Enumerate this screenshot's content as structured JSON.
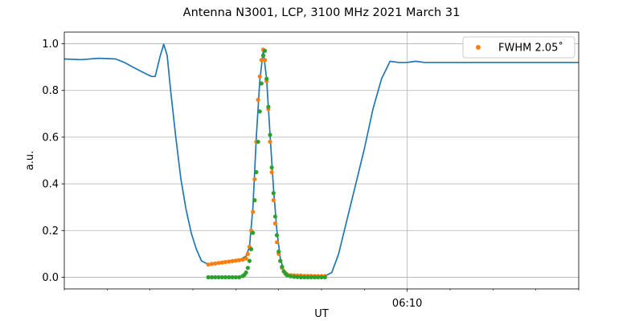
{
  "chart_data": {
    "type": "line",
    "title": "Antenna N3001, LCP, 3100 MHz 2021 March 31",
    "xlabel": "UT",
    "ylabel": "a.u.",
    "x_unit": "minutes",
    "xlim": [
      -20,
      10
    ],
    "ylim": [
      -0.05,
      1.05
    ],
    "y_ticks": [
      0.0,
      0.2,
      0.4,
      0.6,
      0.8,
      1.0
    ],
    "y_tick_labels": [
      "0.0",
      "0.2",
      "0.4",
      "0.6",
      "0.8",
      "1.0"
    ],
    "x_major_ticks": [
      {
        "value": 0,
        "label": "06:10"
      }
    ],
    "x_minor_ticks": [
      -20,
      -17.5,
      -15,
      -12.5,
      -10,
      -7.5,
      -5,
      -2.5,
      2.5,
      5,
      7.5,
      10
    ],
    "grid": true,
    "legend": {
      "placement": "top-right",
      "entries": [
        "FWHM 2.05$^\\circ$"
      ]
    },
    "legend_display": "FWHM 2.05˚",
    "colors": {
      "line": "#1f77b4",
      "fit": "#ff7f0e",
      "model": "#2ca02c"
    },
    "series": [
      {
        "style": "line",
        "color": "#1f77b4",
        "x": [
          -20,
          -19,
          -18,
          -17,
          -16.5,
          -16,
          -15.6,
          -15.2,
          -14.9,
          -14.7,
          -14.4,
          -14.2,
          -14,
          -13.8,
          -13.5,
          -13.2,
          -12.9,
          -12.6,
          -12.3,
          -12,
          -11.6,
          -11.2,
          -10.8,
          -10.4,
          -10,
          -9.7,
          -9.4,
          -9.2,
          -9,
          -8.8,
          -8.6,
          -8.4,
          -8.2,
          -8,
          -7.8,
          -7.6,
          -7.4,
          -7.2,
          -7,
          -6.8,
          -6.6,
          -6.4,
          -6.2,
          -6,
          -5.6,
          -5.2,
          -4.8,
          -4.4,
          -4,
          -3.5,
          -3,
          -2.5,
          -2,
          -1.5,
          -1,
          -0.5,
          0,
          0.5,
          1,
          2,
          3,
          4,
          5,
          6,
          7,
          8,
          9,
          10
        ],
        "y": [
          0.935,
          0.932,
          0.938,
          0.935,
          0.92,
          0.9,
          0.885,
          0.87,
          0.86,
          0.86,
          0.95,
          0.998,
          0.95,
          0.8,
          0.6,
          0.42,
          0.29,
          0.19,
          0.12,
          0.07,
          0.055,
          0.06,
          0.065,
          0.07,
          0.075,
          0.078,
          0.09,
          0.13,
          0.3,
          0.6,
          0.84,
          0.97,
          0.85,
          0.61,
          0.38,
          0.2,
          0.08,
          0.03,
          0.01,
          0.005,
          0.005,
          0.005,
          0.005,
          0.005,
          0.005,
          0.003,
          0.005,
          0.02,
          0.1,
          0.25,
          0.4,
          0.55,
          0.72,
          0.85,
          0.925,
          0.92,
          0.92,
          0.925,
          0.92,
          0.92,
          0.92,
          0.92,
          0.92,
          0.92,
          0.92,
          0.92,
          0.92,
          0.92
        ]
      },
      {
        "name": "FWHM 2.05˚",
        "style": "scatter",
        "color": "#ff7f0e",
        "x": [
          -11.6,
          -11.4,
          -11.2,
          -11,
          -10.8,
          -10.6,
          -10.4,
          -10.2,
          -10,
          -9.8,
          -9.6,
          -9.4,
          -9.3,
          -9.2,
          -9.1,
          -9,
          -8.9,
          -8.8,
          -8.7,
          -8.6,
          -8.5,
          -8.4,
          -8.3,
          -8.2,
          -8.1,
          -8,
          -7.9,
          -7.8,
          -7.7,
          -7.6,
          -7.5,
          -7.4,
          -7.3,
          -7.2,
          -7.1,
          -7,
          -6.8,
          -6.6,
          -6.4,
          -6.2,
          -6,
          -5.8,
          -5.6,
          -5.4,
          -5.2,
          -5,
          -4.8
        ],
        "y": [
          0.054,
          0.057,
          0.059,
          0.061,
          0.063,
          0.065,
          0.067,
          0.069,
          0.071,
          0.073,
          0.075,
          0.08,
          0.1,
          0.13,
          0.2,
          0.28,
          0.42,
          0.58,
          0.76,
          0.86,
          0.93,
          0.975,
          0.93,
          0.84,
          0.72,
          0.58,
          0.45,
          0.33,
          0.23,
          0.15,
          0.1,
          0.07,
          0.04,
          0.025,
          0.017,
          0.012,
          0.009,
          0.008,
          0.007,
          0.007,
          0.006,
          0.006,
          0.006,
          0.005,
          0.005,
          0.005,
          0.005
        ]
      },
      {
        "style": "scatter",
        "color": "#2ca02c",
        "x": [
          -11.6,
          -11.4,
          -11.2,
          -11,
          -10.8,
          -10.6,
          -10.4,
          -10.2,
          -10,
          -9.8,
          -9.6,
          -9.5,
          -9.4,
          -9.3,
          -9.2,
          -9.1,
          -9,
          -8.9,
          -8.8,
          -8.7,
          -8.6,
          -8.5,
          -8.4,
          -8.3,
          -8.2,
          -8.1,
          -8,
          -7.9,
          -7.8,
          -7.7,
          -7.6,
          -7.5,
          -7.4,
          -7.3,
          -7.2,
          -7.1,
          -7,
          -6.8,
          -6.6,
          -6.4,
          -6.2,
          -6,
          -5.8,
          -5.6,
          -5.4,
          -5.2,
          -5,
          -4.8
        ],
        "y": [
          0.0,
          0.0,
          0.0,
          0.0,
          0.0,
          0.0,
          0.0,
          0.0,
          0.0,
          0.0,
          0.005,
          0.01,
          0.02,
          0.04,
          0.07,
          0.12,
          0.19,
          0.33,
          0.45,
          0.58,
          0.71,
          0.83,
          0.95,
          0.97,
          0.85,
          0.73,
          0.61,
          0.47,
          0.36,
          0.26,
          0.18,
          0.11,
          0.07,
          0.045,
          0.025,
          0.015,
          0.008,
          0.004,
          0.002,
          0.001,
          0.0,
          0.0,
          0.0,
          0.0,
          0.0,
          0.0,
          0.0,
          0.0
        ]
      }
    ]
  }
}
